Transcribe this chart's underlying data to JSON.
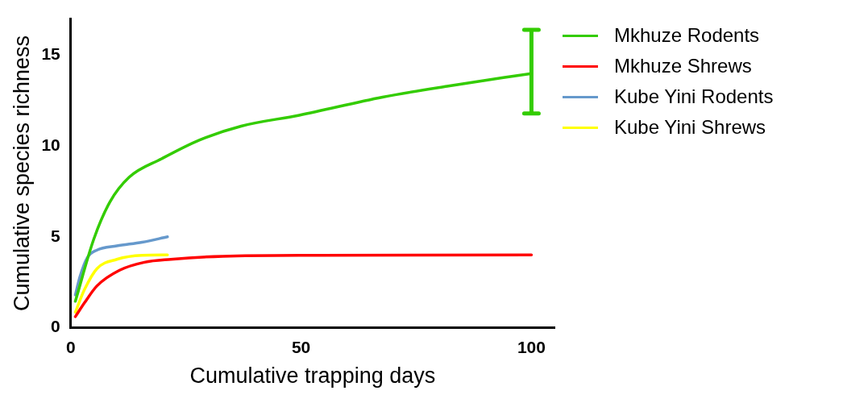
{
  "chart_data": {
    "type": "line",
    "xlabel": "Cumulative trapping days",
    "ylabel": "Cumulative species richness",
    "xlim": [
      0,
      105
    ],
    "xticks": [
      0,
      50,
      100
    ],
    "ylim": [
      0,
      17
    ],
    "yticks": [
      0,
      5,
      10,
      15
    ],
    "grid": false,
    "legend": "top right",
    "marker": "none",
    "line_style": "solid",
    "series": [
      {
        "name": "Mkhuze Rodents",
        "color": "#33cc00",
        "x": [
          1,
          5,
          8.5,
          12.7,
          19.7,
          28,
          37,
          49.6,
          67.7,
          81.7,
          100
        ],
        "values": [
          1.45,
          4.87,
          6.92,
          8.29,
          9.3,
          10.34,
          11.1,
          11.7,
          12.7,
          13.3,
          14
        ],
        "errors": [
          null,
          null,
          null,
          null,
          null,
          null,
          null,
          null,
          null,
          null,
          [
            11.8,
            16.4
          ]
        ]
      },
      {
        "name": "Mkhuze Shrews",
        "color": "#ff0000",
        "x": [
          1,
          3,
          5.7,
          10.6,
          16,
          21.7,
          33,
          54,
          100
        ],
        "values": [
          0.6,
          1.37,
          2.3,
          3.16,
          3.6,
          3.76,
          3.93,
          3.98,
          4
        ]
      },
      {
        "name": "Kube Yini Rodents",
        "color": "#6699cc",
        "x": [
          1,
          2,
          3.6,
          5.7,
          10,
          15.5,
          21
        ],
        "values": [
          1.8,
          2.8,
          3.85,
          4.27,
          4.5,
          4.7,
          5
        ]
      },
      {
        "name": "Kube Yini Shrews",
        "color": "#ffff00",
        "x": [
          1,
          3,
          5.7,
          10,
          15.5,
          21
        ],
        "values": [
          0.85,
          2.1,
          3.25,
          3.76,
          3.98,
          4
        ]
      }
    ]
  }
}
